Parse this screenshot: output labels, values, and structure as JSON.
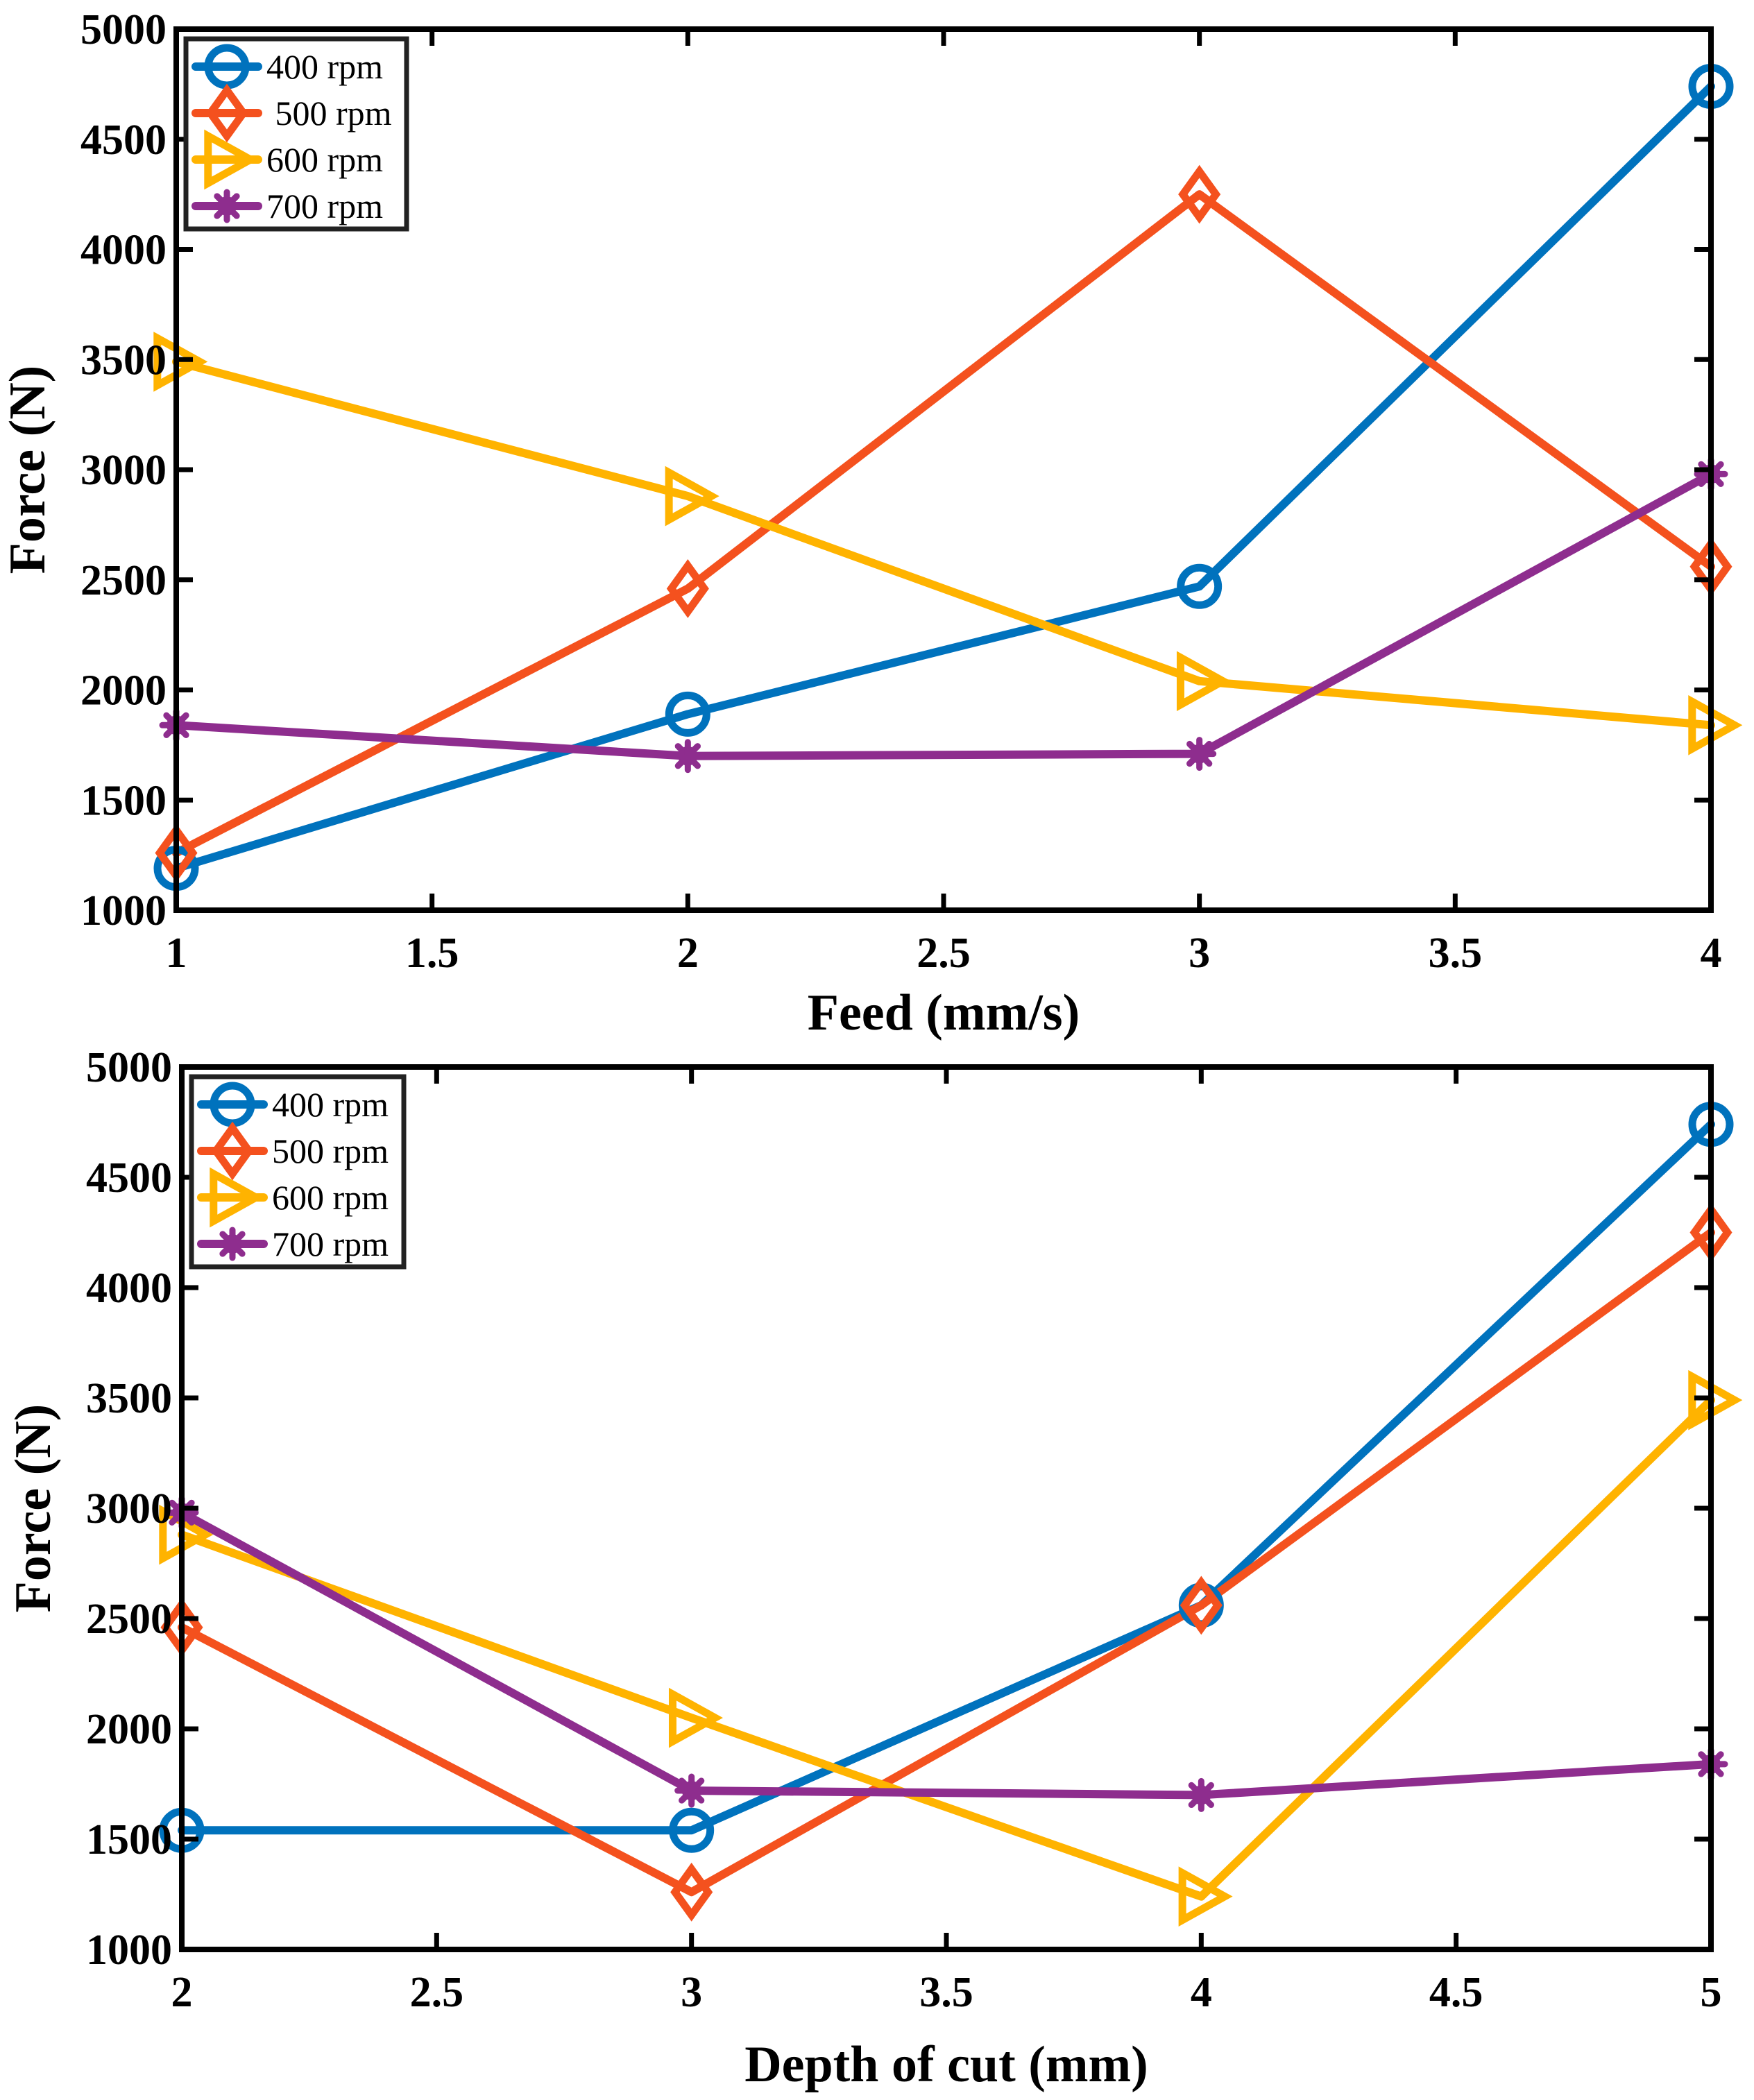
{
  "chart_data": [
    {
      "type": "line",
      "xlabel": "Feed (mm/s)",
      "ylabel": "Force (N)",
      "xlim": [
        1,
        4
      ],
      "ylim": [
        1000,
        5000
      ],
      "xticks": [
        1,
        1.5,
        2,
        2.5,
        3,
        3.5,
        4
      ],
      "xtick_labels": [
        "1",
        "1.5",
        "2",
        "2.5",
        "3",
        "3.5",
        "4"
      ],
      "yticks": [
        1000,
        1500,
        2000,
        2500,
        3000,
        3500,
        4000,
        4500,
        5000
      ],
      "ytick_labels": [
        "1000",
        "1500",
        "2000",
        "2500",
        "3000",
        "3500",
        "4000",
        "4500",
        "5000"
      ],
      "legend_position": "top-left",
      "x": [
        1,
        2,
        3,
        4
      ],
      "series": [
        {
          "name": "400 rpm",
          "label": "400 rpm",
          "marker": "circle",
          "color": "#0072BD",
          "values": [
            1190,
            1890,
            2470,
            4740
          ]
        },
        {
          "name": "500 rpm",
          "label": " 500 rpm",
          "marker": "diamond",
          "color": "#F4511E",
          "values": [
            1260,
            2460,
            4250,
            2560
          ]
        },
        {
          "name": "600 rpm",
          "label": "600 rpm",
          "marker": "triangle-right",
          "color": "#FFB300",
          "values": [
            3490,
            2880,
            2040,
            1840
          ]
        },
        {
          "name": "700 rpm",
          "label": "700 rpm",
          "marker": "asterisk",
          "color": "#8E2D8E",
          "values": [
            1840,
            1700,
            1710,
            2980
          ]
        }
      ]
    },
    {
      "type": "line",
      "xlabel": "Depth of cut (mm)",
      "ylabel": "Force (N)",
      "xlim": [
        2,
        5
      ],
      "ylim": [
        1000,
        5000
      ],
      "xticks": [
        2,
        2.5,
        3,
        3.5,
        4,
        4.5,
        5
      ],
      "xtick_labels": [
        "2",
        "2.5",
        "3",
        "3.5",
        "4",
        "4.5",
        "5"
      ],
      "yticks": [
        1000,
        1500,
        2000,
        2500,
        3000,
        3500,
        4000,
        4500,
        5000
      ],
      "ytick_labels": [
        "1000",
        "1500",
        "2000",
        "2500",
        "3000",
        "3500",
        "4000",
        "4500",
        "5000"
      ],
      "legend_position": "top-left",
      "x": [
        2,
        3,
        4,
        5
      ],
      "series": [
        {
          "name": "400 rpm",
          "label": "400 rpm",
          "marker": "circle",
          "color": "#0072BD",
          "values": [
            1540,
            1540,
            2560,
            4740
          ]
        },
        {
          "name": "500 rpm",
          "label": "500 rpm",
          "marker": "diamond",
          "color": "#F4511E",
          "values": [
            2460,
            1260,
            2560,
            4250
          ]
        },
        {
          "name": "600 rpm",
          "label": "600 rpm",
          "marker": "triangle-right",
          "color": "#FFB300",
          "values": [
            2880,
            2050,
            1240,
            3490
          ]
        },
        {
          "name": "700 rpm",
          "label": "700 rpm",
          "marker": "asterisk",
          "color": "#8E2D8E",
          "values": [
            2980,
            1720,
            1700,
            1840
          ]
        }
      ]
    }
  ]
}
